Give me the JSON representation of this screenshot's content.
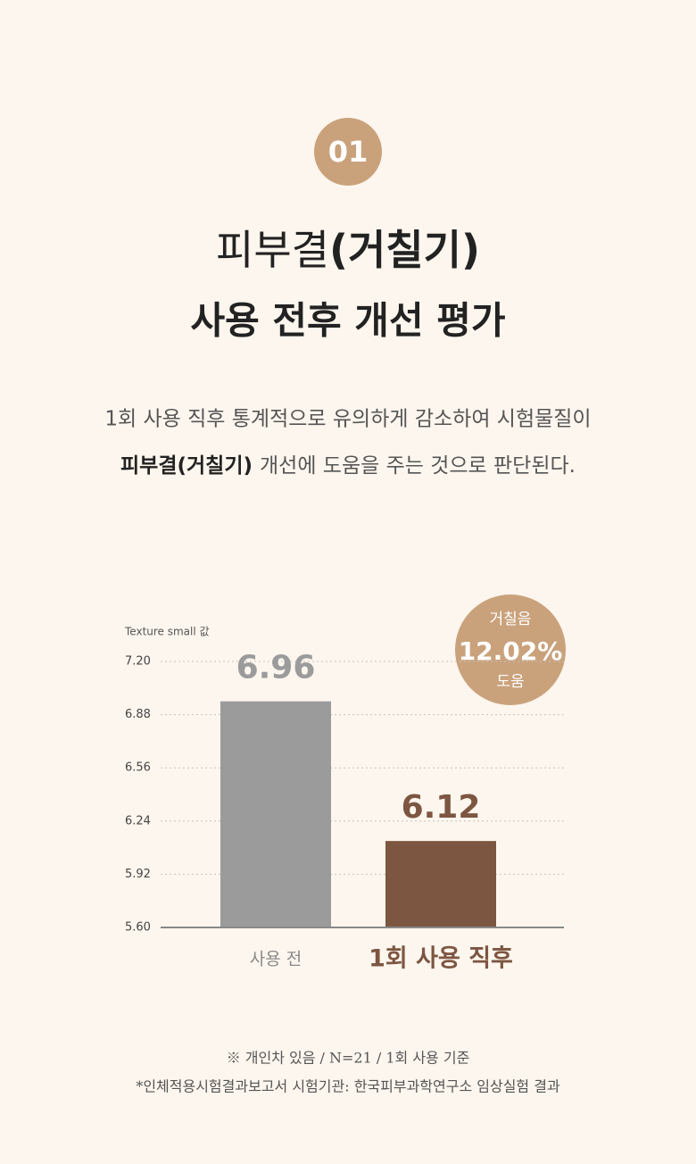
{
  "badge": "01",
  "title": {
    "line1_regular": "피부결",
    "line1_bold": "(거칠기)",
    "line2": "사용 전후 개선 평가"
  },
  "description": {
    "line1": "1회 사용 직후 통계적으로 유의하게 감소하여 시험물질이",
    "line2_bold": "피부결(거칠기)",
    "line2_rest": "개선에 도움을 주는 것으로 판단된다."
  },
  "chart_data": {
    "type": "bar",
    "y_axis_label": "Texture small 값",
    "categories": [
      "사용 전",
      "1회 사용 직후"
    ],
    "values": [
      6.96,
      6.12
    ],
    "colors": [
      "#9b9b9b",
      "#7d5641"
    ],
    "ylim": [
      5.6,
      7.2
    ],
    "yticks": [
      {
        "value": 5.6,
        "label": "5.60"
      },
      {
        "value": 5.92,
        "label": "5.92"
      },
      {
        "value": 6.24,
        "label": "6.24"
      },
      {
        "value": 6.56,
        "label": "6.56"
      },
      {
        "value": 6.88,
        "label": "6.88"
      },
      {
        "value": 7.2,
        "label": "7.20"
      }
    ],
    "grid": true,
    "callout": {
      "top": "거칠음",
      "value": "12.02%",
      "bottom": "도움"
    }
  },
  "footnotes": [
    "※ 개인차 있음 / N=21 / 1회 사용 기준",
    "*인체적용시험결과보고서 시험기관: 한국피부과학연구소 임상실험 결과"
  ]
}
